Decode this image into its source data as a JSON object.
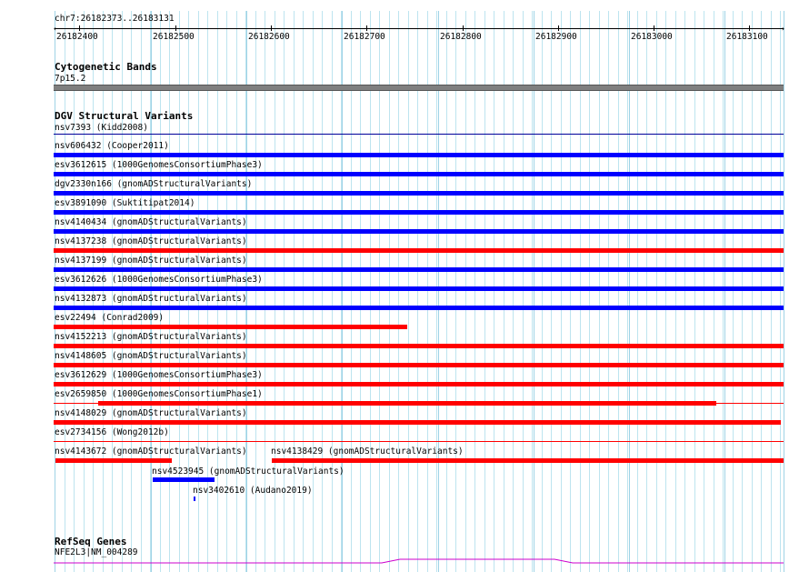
{
  "locus": "chr7:26182373..26183131",
  "ruler": {
    "ticks": [
      "26182400",
      "26182500",
      "26182600",
      "26182700",
      "26182800",
      "26182900",
      "26183000",
      "26183100"
    ]
  },
  "colors": {
    "gain": "#0000ff",
    "loss": "#ff0000",
    "refseq": "#cc00cc",
    "band": "#7f7f7f",
    "grid": "#bde4ef"
  },
  "tracks": {
    "cytobands": {
      "title": "Cytogenetic Bands",
      "band": "7p15.2"
    },
    "dgv": {
      "title": "DGV Structural Variants",
      "variants": [
        "nsv7393 (Kidd2008)",
        "nsv606432 (Cooper2011)",
        "esv3612615 (1000GenomesConsortiumPhase3)",
        "dgv2330n166 (gnomADStructuralVariants)",
        "esv3891090 (Suktitipat2014)",
        "nsv4140434 (gnomADStructuralVariants)",
        "nsv4137238 (gnomADStructuralVariants)",
        "nsv4137199 (gnomADStructuralVariants)",
        "esv3612626 (1000GenomesConsortiumPhase3)",
        "nsv4132873 (gnomADStructuralVariants)",
        "esv22494 (Conrad2009)",
        "nsv4152213 (gnomADStructuralVariants)",
        "nsv4148605 (gnomADStructuralVariants)",
        "esv3612629 (1000GenomesConsortiumPhase3)",
        "esv2659850 (1000GenomesConsortiumPhase1)",
        "nsv4148029 (gnomADStructuralVariants)",
        "esv2734156 (Wong2012b)",
        "nsv4143672 (gnomADStructuralVariants)",
        "nsv4138429 (gnomADStructuralVariants)",
        "nsv4523945 (gnomADStructuralVariants)",
        "nsv3402610 (Audano2019)"
      ]
    },
    "refseq": {
      "title": "RefSeq Genes",
      "gene": "NFE2L3|NM_004289"
    }
  }
}
